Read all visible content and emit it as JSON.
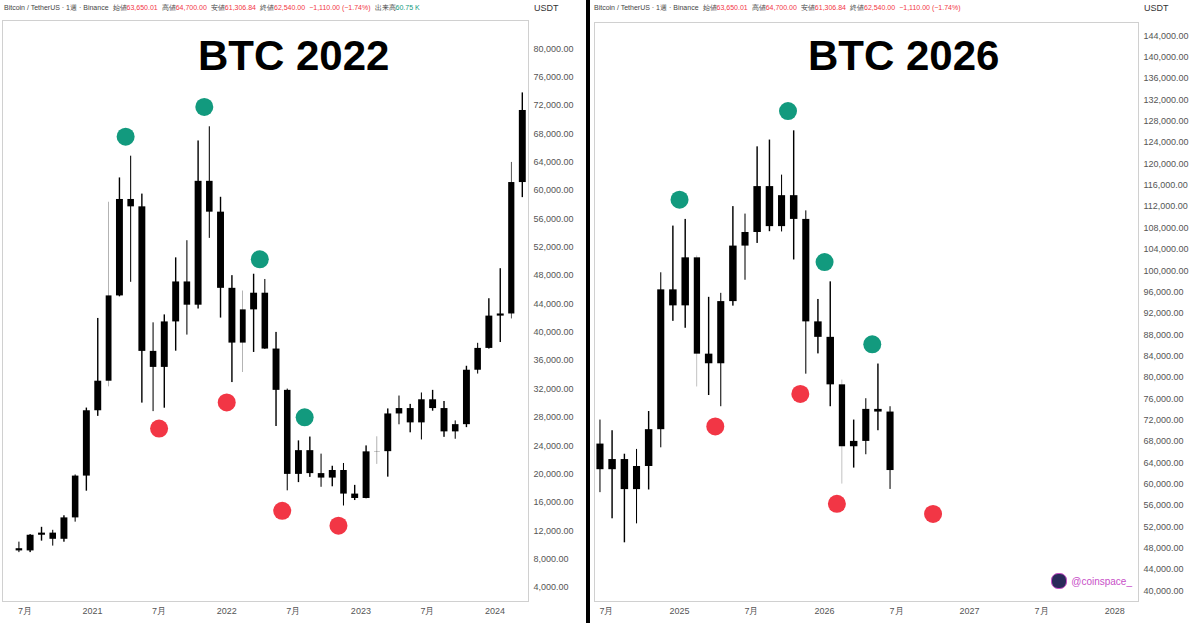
{
  "chart_data": [
    {
      "type": "candlestick",
      "title": "BTC 2022",
      "header": {
        "symbol": "Bitcoin / TetherUS · 1週 · Binance",
        "fields": [
          {
            "label": "始値",
            "value": "63,650.01"
          },
          {
            "label": "高値",
            "value": "64,700.00"
          },
          {
            "label": "安値",
            "value": "61,306.84"
          },
          {
            "label": "終値",
            "value": "62,540.00"
          }
        ],
        "change": "−1,110.00 (−1.74%)",
        "volume": {
          "label": "出来高",
          "value": "60.75 K"
        }
      },
      "y_label": "USDT",
      "color": "#000000",
      "grid": false,
      "x": [
        "2020-06",
        "2020-07",
        "2020-08",
        "2020-09",
        "2020-10",
        "2020-11",
        "2020-12",
        "2021-01",
        "2021-02",
        "2021-03",
        "2021-04",
        "2021-05",
        "2021-06",
        "2021-07",
        "2021-08",
        "2021-09",
        "2021-10",
        "2021-11",
        "2021-12",
        "2022-01",
        "2022-02",
        "2022-03",
        "2022-04",
        "2022-05",
        "2022-06",
        "2022-07",
        "2022-08",
        "2022-09",
        "2022-10",
        "2022-11",
        "2022-12",
        "2023-01",
        "2023-02",
        "2023-03",
        "2023-04",
        "2023-05",
        "2023-06",
        "2023-07",
        "2023-08",
        "2023-09",
        "2023-10",
        "2023-11",
        "2023-12",
        "2024-01",
        "2024-02",
        "2024-03"
      ],
      "open": [
        9450,
        9140,
        11350,
        11650,
        10780,
        13800,
        19700,
        28920,
        33090,
        45130,
        58740,
        57700,
        37300,
        35040,
        41460,
        47100,
        43820,
        61300,
        56950,
        46200,
        38470,
        43160,
        45510,
        37630,
        31800,
        19940,
        23290,
        20050,
        19420,
        20490,
        17160,
        16540,
        23120,
        23150,
        28470,
        29230,
        27210,
        30470,
        29230,
        25940,
        26960,
        34640,
        37720,
        42280,
        42580,
        61130
      ],
      "high": [
        10380,
        11440,
        12470,
        12050,
        14100,
        19860,
        29300,
        41950,
        58350,
        61780,
        64850,
        59500,
        41330,
        42450,
        50500,
        52920,
        67000,
        69000,
        59050,
        47990,
        45820,
        48190,
        47450,
        39980,
        31980,
        24670,
        25210,
        22800,
        21090,
        21480,
        18390,
        23960,
        25250,
        29180,
        31000,
        29820,
        31430,
        31800,
        30230,
        27490,
        35200,
        38440,
        44730,
        48970,
        63970,
        73780
      ],
      "low": [
        8900,
        8900,
        10520,
        9820,
        10370,
        13200,
        17570,
        28130,
        32300,
        45000,
        47050,
        30000,
        28800,
        29280,
        37330,
        39600,
        43280,
        53250,
        42000,
        32900,
        34320,
        37150,
        37580,
        26700,
        17620,
        18780,
        19520,
        18120,
        18190,
        15480,
        16250,
        16500,
        21350,
        19550,
        26940,
        25810,
        24800,
        28860,
        25170,
        24900,
        26540,
        34100,
        37630,
        38550,
        41880,
        59000
      ],
      "close": [
        9140,
        11350,
        11650,
        10780,
        13800,
        19700,
        28920,
        33090,
        45130,
        58740,
        57700,
        37300,
        35040,
        41460,
        47100,
        43820,
        61300,
        56950,
        46200,
        38470,
        43160,
        45510,
        37630,
        31800,
        19940,
        23290,
        20050,
        19420,
        20490,
        17160,
        16540,
        23120,
        23150,
        28470,
        29230,
        27210,
        30470,
        29230,
        25940,
        26960,
        34640,
        37720,
        42280,
        42580,
        61130,
        71300
      ],
      "xlim": [
        "2020-05",
        "2024-04"
      ],
      "xticks": [
        {
          "value": "2020-07",
          "label": "7月"
        },
        {
          "value": "2021-01",
          "label": "2021"
        },
        {
          "value": "2021-07",
          "label": "7月"
        },
        {
          "value": "2022-01",
          "label": "2022"
        },
        {
          "value": "2022-07",
          "label": "7月"
        },
        {
          "value": "2023-01",
          "label": "2023"
        },
        {
          "value": "2023-07",
          "label": "7月"
        },
        {
          "value": "2024-01",
          "label": "2024"
        }
      ],
      "ylim": [
        2000,
        84000
      ],
      "yticks": [
        {
          "value": 4000,
          "label": "4,000.00"
        },
        {
          "value": 8000,
          "label": "8,000.00"
        },
        {
          "value": 12000,
          "label": "12,000.00"
        },
        {
          "value": 16000,
          "label": "16,000.00"
        },
        {
          "value": 20000,
          "label": "20,000.00"
        },
        {
          "value": 24000,
          "label": "24,000.00"
        },
        {
          "value": 28000,
          "label": "28,000.00"
        },
        {
          "value": 32000,
          "label": "32,000.00"
        },
        {
          "value": 36000,
          "label": "36,000.00"
        },
        {
          "value": 40000,
          "label": "40,000.00"
        },
        {
          "value": 44000,
          "label": "44,000.00"
        },
        {
          "value": 48000,
          "label": "48,000.00"
        },
        {
          "value": 52000,
          "label": "52,000.00"
        },
        {
          "value": 56000,
          "label": "56,000.00"
        },
        {
          "value": 60000,
          "label": "60,000.00"
        },
        {
          "value": 64000,
          "label": "64,000.00"
        },
        {
          "value": 68000,
          "label": "68,000.00"
        },
        {
          "value": 72000,
          "label": "72,000.00"
        },
        {
          "value": 76000,
          "label": "76,000.00"
        },
        {
          "value": 80000,
          "label": "80,000.00"
        }
      ],
      "annotations": [
        {
          "x": "2021-04",
          "y": 67600,
          "color": "#129a7e"
        },
        {
          "x": "2021-07",
          "y": 26400,
          "color": "#f23645"
        },
        {
          "x": "2021-11",
          "y": 71800,
          "color": "#129a7e"
        },
        {
          "x": "2022-01",
          "y": 30100,
          "color": "#f23645"
        },
        {
          "x": "2022-04",
          "y": 50300,
          "color": "#129a7e"
        },
        {
          "x": "2022-06",
          "y": 14800,
          "color": "#f23645"
        },
        {
          "x": "2022-08",
          "y": 28000,
          "color": "#129a7e"
        },
        {
          "x": "2022-11",
          "y": 12700,
          "color": "#f23645"
        }
      ]
    },
    {
      "type": "candlestick",
      "title": "BTC 2026",
      "header": {
        "symbol": "Bitcoin / TetherUS · 1週 · Binance",
        "fields": [
          {
            "label": "始値",
            "value": "63,650.01"
          },
          {
            "label": "高値",
            "value": "64,700.00"
          },
          {
            "label": "安値",
            "value": "61,306.84"
          },
          {
            "label": "終値",
            "value": "62,540.00"
          }
        ],
        "change": "−1,110.00 (−1.74%)"
      },
      "y_label": "USDT",
      "watermark": "@coinspace_",
      "color": "#000000",
      "grid": false,
      "x": [
        "2024-06",
        "2024-07",
        "2024-08",
        "2024-09",
        "2024-10",
        "2024-11",
        "2024-12",
        "2025-01",
        "2025-02",
        "2025-03",
        "2025-04",
        "2025-05",
        "2025-06",
        "2025-07",
        "2025-08",
        "2025-09",
        "2025-10",
        "2025-11",
        "2025-12",
        "2026-01",
        "2026-02",
        "2026-03",
        "2026-04",
        "2026-05",
        "2026-06"
      ],
      "open": [
        67500,
        62700,
        64600,
        58970,
        63300,
        70200,
        96400,
        93400,
        102400,
        84350,
        82550,
        94200,
        104600,
        107150,
        115750,
        108250,
        114050,
        109600,
        90400,
        87500,
        78600,
        67000,
        68000,
        74000,
        73500
      ],
      "high": [
        72000,
        70000,
        65600,
        66500,
        73600,
        99600,
        108350,
        109600,
        102750,
        95000,
        95750,
        112000,
        110600,
        123200,
        124470,
        117900,
        126200,
        111200,
        94600,
        97900,
        79500,
        72000,
        76000,
        82500,
        74500
      ],
      "low": [
        58400,
        53500,
        49000,
        52550,
        58900,
        66800,
        90500,
        89200,
        78200,
        76600,
        74500,
        93350,
        98200,
        105100,
        107300,
        107250,
        102000,
        80600,
        84400,
        74500,
        60000,
        63000,
        65500,
        70000,
        59000
      ],
      "close": [
        62700,
        64600,
        58970,
        63300,
        70200,
        96400,
        93400,
        102400,
        84350,
        82550,
        94200,
        104600,
        107150,
        115750,
        108250,
        114050,
        109600,
        90400,
        87500,
        78600,
        67000,
        68000,
        74000,
        73500,
        62540
      ],
      "xlim": [
        "2024-06",
        "2028-03"
      ],
      "xticks": [
        {
          "value": "2024-07",
          "label": "7月"
        },
        {
          "value": "2025-01",
          "label": "2025"
        },
        {
          "value": "2025-07",
          "label": "7月"
        },
        {
          "value": "2026-01",
          "label": "2026"
        },
        {
          "value": "2026-07",
          "label": "7月"
        },
        {
          "value": "2027-01",
          "label": "2027"
        },
        {
          "value": "2027-07",
          "label": "7月"
        },
        {
          "value": "2028-01",
          "label": "2028"
        }
      ],
      "ylim": [
        38000,
        146500
      ],
      "yticks": [
        {
          "value": 40000,
          "label": "40,000.00"
        },
        {
          "value": 44000,
          "label": "44,000.00"
        },
        {
          "value": 48000,
          "label": "48,000.00"
        },
        {
          "value": 52000,
          "label": "52,000.00"
        },
        {
          "value": 56000,
          "label": "56,000.00"
        },
        {
          "value": 60000,
          "label": "60,000.00"
        },
        {
          "value": 64000,
          "label": "64,000.00"
        },
        {
          "value": 68000,
          "label": "68,000.00"
        },
        {
          "value": 72000,
          "label": "72,000.00"
        },
        {
          "value": 76000,
          "label": "76,000.00"
        },
        {
          "value": 80000,
          "label": "80,000.00"
        },
        {
          "value": 84000,
          "label": "84,000.00"
        },
        {
          "value": 88000,
          "label": "88,000.00"
        },
        {
          "value": 92000,
          "label": "92,000.00"
        },
        {
          "value": 96000,
          "label": "96,000.00"
        },
        {
          "value": 100000,
          "label": "100,000.00"
        },
        {
          "value": 104000,
          "label": "104,000.00"
        },
        {
          "value": 108000,
          "label": "108,000.00"
        },
        {
          "value": 112000,
          "label": "112,000.00"
        },
        {
          "value": 116000,
          "label": "116,000.00"
        },
        {
          "value": 120000,
          "label": "120,000.00"
        },
        {
          "value": 124000,
          "label": "124,000.00"
        },
        {
          "value": 128000,
          "label": "128,000.00"
        },
        {
          "value": 132000,
          "label": "132,000.00"
        },
        {
          "value": 136000,
          "label": "136,000.00"
        },
        {
          "value": 140000,
          "label": "140,000.00"
        },
        {
          "value": 144000,
          "label": "144,000.00"
        }
      ],
      "annotations": [
        {
          "x": "2025-01",
          "y": 113300,
          "color": "#129a7e"
        },
        {
          "x": "2025-04",
          "y": 70800,
          "color": "#f23645"
        },
        {
          "x": "2025-10",
          "y": 129900,
          "color": "#129a7e"
        },
        {
          "x": "2025-11",
          "y": 76900,
          "color": "#f23645"
        },
        {
          "x": "2026-01",
          "y": 101600,
          "color": "#129a7e"
        },
        {
          "x": "2026-02",
          "y": 56300,
          "color": "#f23645"
        },
        {
          "x": "2026-05",
          "y": 86200,
          "color": "#129a7e"
        },
        {
          "x": "2026-10",
          "y": 54400,
          "color": "#f23645"
        }
      ]
    }
  ]
}
